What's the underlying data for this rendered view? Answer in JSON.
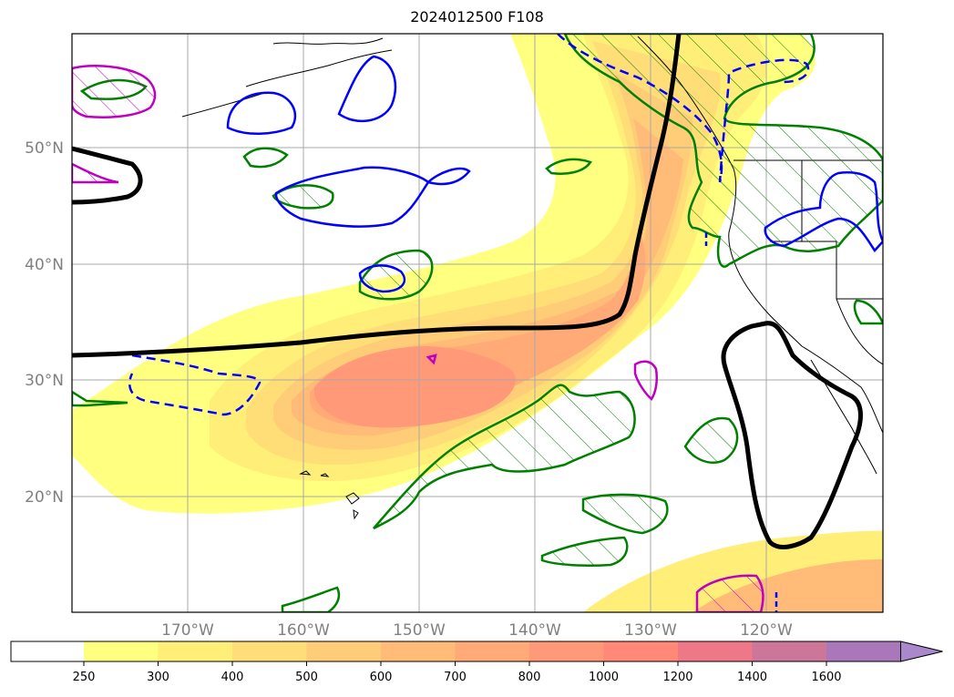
{
  "title": "2024012500 F108",
  "map": {
    "lat_labels": [
      "50°N",
      "40°N",
      "30°N",
      "20°N"
    ],
    "lon_labels": [
      "170°W",
      "160°W",
      "150°W",
      "140°W",
      "130°W",
      "120°W"
    ]
  },
  "colorbar": {
    "tick_labels": [
      "250",
      "300",
      "400",
      "500",
      "600",
      "700",
      "800",
      "1000",
      "1200",
      "1400",
      "1600"
    ],
    "colors": [
      "#ffff80",
      "#ffee77",
      "#ffdd77",
      "#ffcc77",
      "#ffbb77",
      "#ffaa77",
      "#ff9977",
      "#ff8877",
      "#ee7788",
      "#cc7799",
      "#aa77bb",
      "#aa88cc"
    ],
    "extend": "max"
  },
  "overlays": {
    "thick_contour_color": "#000000",
    "green_contour_color": "#008000",
    "blue_contour_color": "#0000ff",
    "magenta_contour_color": "#c000c0"
  }
}
